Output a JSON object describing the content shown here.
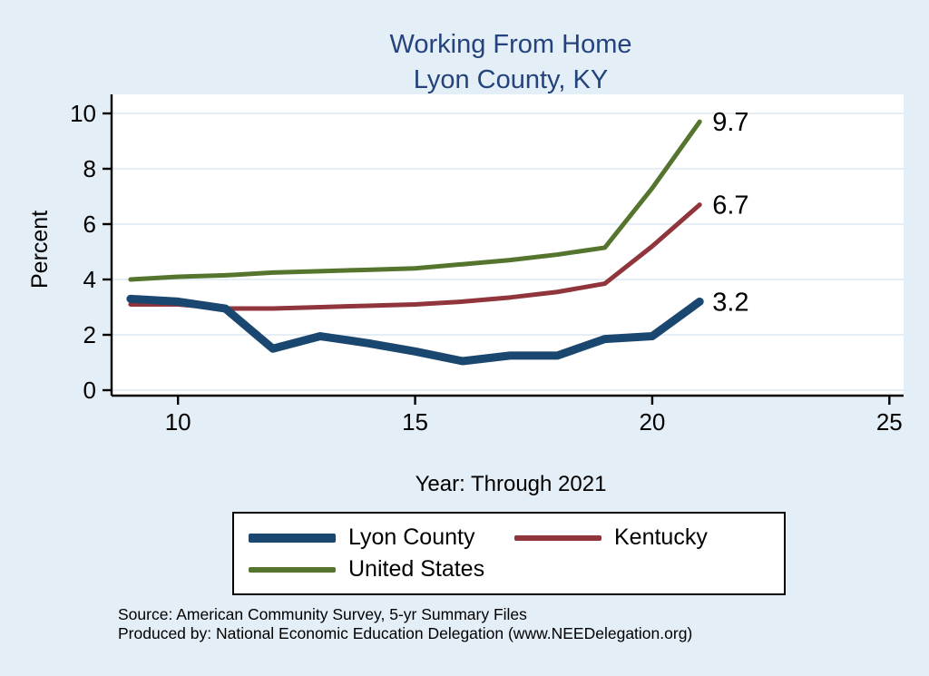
{
  "title": {
    "line1": "Working From Home",
    "line2": "Lyon County, KY"
  },
  "axes": {
    "ylabel": "Percent",
    "xlabel": "Year: Through 2021"
  },
  "chart_data": {
    "type": "line",
    "title": "Working From Home - Lyon County, KY",
    "xlabel": "Year: Through 2021",
    "ylabel": "Percent",
    "x": [
      9,
      10,
      11,
      12,
      13,
      14,
      15,
      16,
      17,
      18,
      19,
      20,
      21
    ],
    "series": [
      {
        "name": "Lyon County",
        "color": "#1a476f",
        "stroke_width": 9,
        "end_label": "3.2",
        "values": [
          3.3,
          3.2,
          2.95,
          1.5,
          1.95,
          1.7,
          1.4,
          1.05,
          1.25,
          1.25,
          1.85,
          1.95,
          3.2
        ]
      },
      {
        "name": "Kentucky",
        "color": "#90353b",
        "stroke_width": 5,
        "end_label": "6.7",
        "values": [
          3.1,
          3.1,
          2.95,
          2.95,
          3.0,
          3.05,
          3.1,
          3.2,
          3.35,
          3.55,
          3.85,
          5.2,
          6.7
        ]
      },
      {
        "name": "United States",
        "color": "#55752f",
        "stroke_width": 5,
        "end_label": "9.7",
        "values": [
          4.0,
          4.1,
          4.15,
          4.25,
          4.3,
          4.35,
          4.4,
          4.55,
          4.7,
          4.9,
          5.15,
          7.3,
          9.7
        ]
      }
    ],
    "xlim": [
      8.6,
      25.3
    ],
    "ylim": [
      0,
      10
    ],
    "xticks": [
      10,
      15,
      20,
      25
    ],
    "yticks": [
      0,
      2,
      4,
      6,
      8,
      10
    ],
    "grid": true,
    "legend_position": "bottom"
  },
  "legend": {
    "items": [
      {
        "label": "Lyon County"
      },
      {
        "label": "Kentucky"
      },
      {
        "label": "United States"
      }
    ]
  },
  "footer": {
    "line1": "Source: American Community Survey, 5-yr Summary Files",
    "line2": "Produced by: National Economic Education Delegation (www.NEEDelegation.org)"
  },
  "colors": {
    "background": "#e4eef6",
    "plot_background": "#ffffff",
    "title_text": "#24437c",
    "axis": "#000000",
    "gridline": "#dde8f2",
    "lyon_county": "#1a476f",
    "kentucky": "#90353b",
    "united_states": "#55752f"
  }
}
